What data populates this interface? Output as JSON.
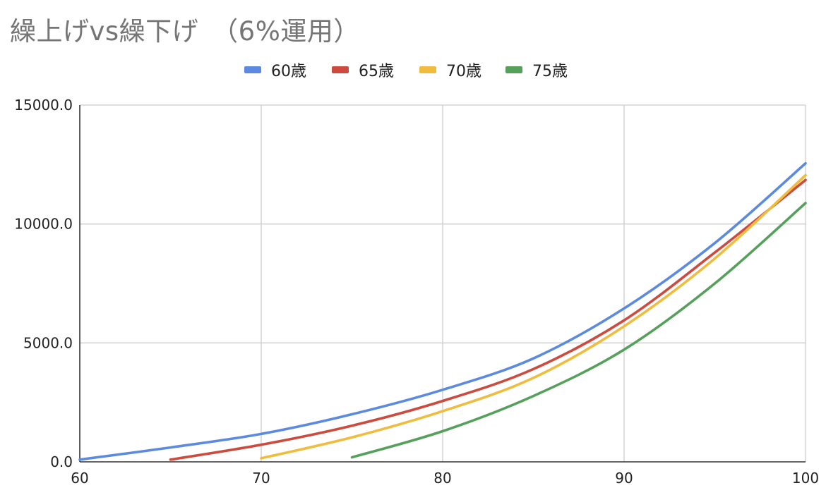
{
  "chart_data": {
    "type": "line",
    "title": "繰上げvs繰下げ　（6%運用）",
    "xlabel": "",
    "ylabel": "",
    "xlim": [
      60,
      100
    ],
    "ylim": [
      0,
      15000
    ],
    "x_ticks": [
      "60",
      "70",
      "80",
      "90",
      "100"
    ],
    "y_ticks": [
      "0.0",
      "5000.0",
      "10000.0",
      "15000.0"
    ],
    "grid": true,
    "legend_position": "top",
    "series": [
      {
        "name": "60歳",
        "color": "#5b8ae0",
        "points": [
          [
            60,
            96
          ],
          [
            65,
            605
          ],
          [
            70,
            1175
          ],
          [
            75,
            2000
          ],
          [
            80,
            3030
          ],
          [
            85,
            4350
          ],
          [
            90,
            6450
          ],
          [
            95,
            9200
          ],
          [
            100,
            12550
          ]
        ]
      },
      {
        "name": "65歳",
        "color": "#cc4b3e",
        "points": [
          [
            65,
            96
          ],
          [
            70,
            720
          ],
          [
            75,
            1520
          ],
          [
            80,
            2560
          ],
          [
            85,
            3900
          ],
          [
            90,
            5950
          ],
          [
            95,
            8800
          ],
          [
            100,
            11850
          ]
        ]
      },
      {
        "name": "70歳",
        "color": "#f0bc3d",
        "points": [
          [
            70,
            150
          ],
          [
            75,
            1030
          ],
          [
            80,
            2130
          ],
          [
            85,
            3530
          ],
          [
            90,
            5700
          ],
          [
            95,
            8550
          ],
          [
            100,
            12050
          ]
        ]
      },
      {
        "name": "75歳",
        "color": "#55a05b",
        "points": [
          [
            75,
            190
          ],
          [
            80,
            1290
          ],
          [
            85,
            2770
          ],
          [
            90,
            4720
          ],
          [
            95,
            7500
          ],
          [
            100,
            10880
          ]
        ]
      }
    ]
  }
}
